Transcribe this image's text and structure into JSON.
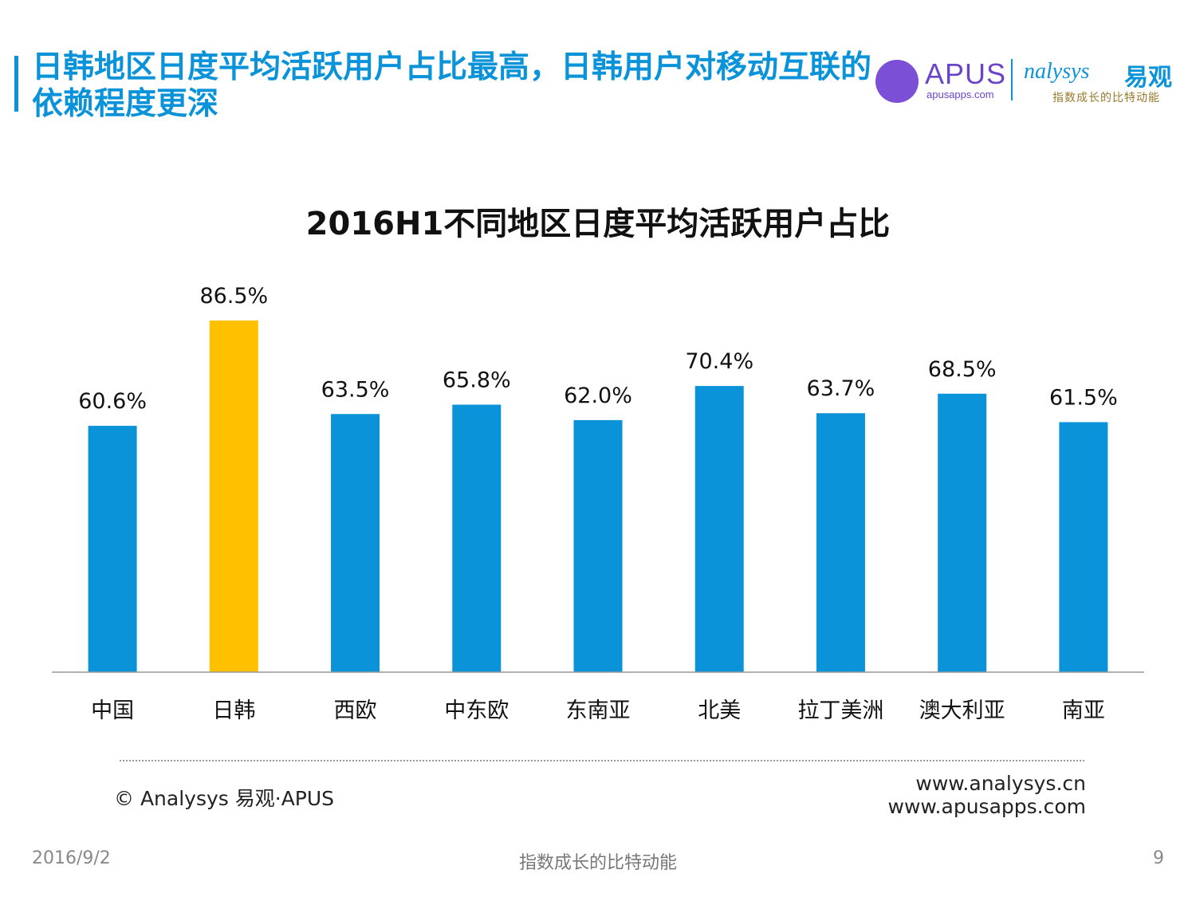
{
  "header": {
    "headline": "日韩地区日度平均活跃用户占比最高，日韩用户对移动互联的依赖程度更深"
  },
  "logos": {
    "apus_text": "APUS",
    "apus_url": "apusapps.com",
    "analysys_text": "nalysys",
    "analysys_cn": "易观",
    "analysys_slogan": "指数成长的比特动能"
  },
  "chart_data": {
    "type": "bar",
    "title": "2016H1不同地区日度平均活跃用户占比",
    "categories": [
      "中国",
      "日韩",
      "西欧",
      "中东欧",
      "东南亚",
      "北美",
      "拉丁美洲",
      "澳大利亚",
      "南亚"
    ],
    "values": [
      60.6,
      86.5,
      63.5,
      65.8,
      62.0,
      70.4,
      63.7,
      68.5,
      61.5
    ],
    "labels": [
      "60.6%",
      "86.5%",
      "63.5%",
      "65.8%",
      "62.0%",
      "70.4%",
      "63.7%",
      "68.5%",
      "61.5%"
    ],
    "highlight_index": 1,
    "ylim": [
      0,
      100
    ],
    "grid": false,
    "colors": {
      "bar": "#0b93d9",
      "highlight": "#ffc000",
      "axis": "#999999"
    }
  },
  "footer": {
    "copyright": "© Analysys 易观·APUS",
    "url1": "www.analysys.cn",
    "url2": "www.apusapps.com",
    "date": "2016/9/2",
    "slogan": "指数成长的比特动能",
    "page": "9"
  }
}
